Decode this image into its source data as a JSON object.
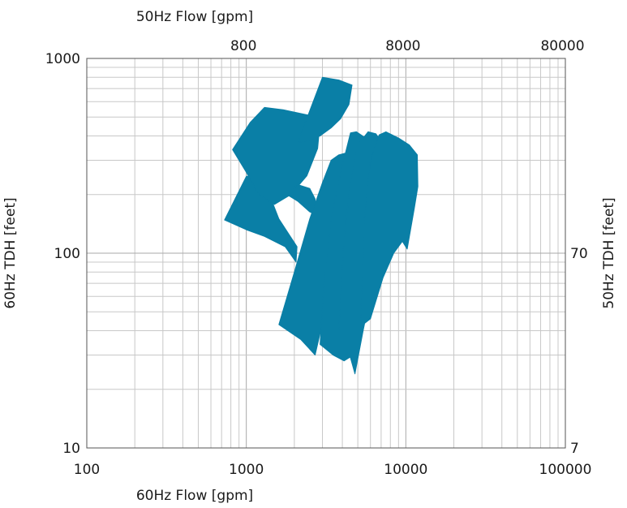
{
  "chart_data": {
    "type": "area",
    "xscale": "log",
    "yscale": "log",
    "xlim": [
      100,
      100000
    ],
    "ylim": [
      10,
      1000
    ],
    "grid": true,
    "xlabel": "60Hz Flow [gpm]",
    "ylabel": "60Hz TDH [feet]",
    "x2label": "50Hz Flow [gpm]",
    "y2label": "50Hz TDH [feet]",
    "x_ticks": [
      "100",
      "1000",
      "10000",
      "100000"
    ],
    "y_ticks": [
      "10",
      "100",
      "1000"
    ],
    "x2_ticks": [
      "800",
      "8000",
      "80000"
    ],
    "y2_ticks": [
      "7",
      "70"
    ],
    "x2_tick_positions_60hz": [
      960,
      9600,
      96000
    ],
    "y2_tick_positions_60hz": [
      10,
      100
    ],
    "fill_color": "#0a7fa6",
    "series": [
      {
        "points": [
          [
            730,
            148
          ],
          [
            1000,
            248
          ],
          [
            1260,
            248
          ],
          [
            1600,
            150
          ],
          [
            2080,
            108
          ],
          [
            2050,
            90
          ],
          [
            1750,
            108
          ],
          [
            1300,
            122
          ],
          [
            1000,
            132
          ]
        ]
      },
      {
        "points": [
          [
            820,
            340
          ],
          [
            1060,
            470
          ],
          [
            1300,
            560
          ],
          [
            1700,
            545
          ],
          [
            2500,
            510
          ],
          [
            2900,
            470
          ],
          [
            2800,
            345
          ],
          [
            2400,
            250
          ],
          [
            1900,
            200
          ],
          [
            1500,
            178
          ],
          [
            1200,
            200
          ],
          [
            1000,
            260
          ]
        ]
      },
      {
        "points": [
          [
            1800,
            200
          ],
          [
            2100,
            185
          ],
          [
            2500,
            163
          ],
          [
            2700,
            158
          ],
          [
            2700,
            190
          ],
          [
            2500,
            215
          ],
          [
            2100,
            225
          ],
          [
            1900,
            210
          ]
        ]
      },
      {
        "points": [
          [
            2100,
            370
          ],
          [
            3000,
            800
          ],
          [
            3800,
            775
          ],
          [
            4600,
            730
          ],
          [
            4400,
            580
          ],
          [
            3900,
            490
          ],
          [
            3400,
            440
          ],
          [
            2900,
            400
          ],
          [
            2500,
            380
          ]
        ]
      },
      {
        "points": [
          [
            1600,
            43
          ],
          [
            2200,
            36
          ],
          [
            2700,
            30
          ],
          [
            3200,
            55
          ],
          [
            3800,
            110
          ],
          [
            4300,
            200
          ],
          [
            4600,
            290
          ],
          [
            4400,
            330
          ],
          [
            3800,
            320
          ],
          [
            3400,
            300
          ],
          [
            3000,
            230
          ],
          [
            2500,
            150
          ],
          [
            2000,
            80
          ]
        ]
      },
      {
        "points": [
          [
            2900,
            34
          ],
          [
            3500,
            30
          ],
          [
            4100,
            28
          ],
          [
            4700,
            30
          ],
          [
            5200,
            60
          ],
          [
            5800,
            120
          ],
          [
            6500,
            220
          ],
          [
            7000,
            310
          ],
          [
            6500,
            360
          ],
          [
            5600,
            390
          ],
          [
            4900,
            420
          ],
          [
            4500,
            415
          ],
          [
            3900,
            260
          ],
          [
            3400,
            150
          ],
          [
            3100,
            80
          ]
        ]
      },
      {
        "points": [
          [
            3800,
            40
          ],
          [
            4500,
            29
          ],
          [
            4800,
            24
          ],
          [
            5400,
            40
          ],
          [
            6200,
            70
          ],
          [
            7000,
            130
          ],
          [
            8000,
            210
          ],
          [
            9000,
            300
          ],
          [
            8000,
            340
          ],
          [
            7000,
            375
          ],
          [
            6500,
            410
          ],
          [
            5800,
            420
          ],
          [
            5000,
            360
          ],
          [
            4500,
            230
          ],
          [
            4100,
            120
          ]
        ]
      },
      {
        "points": [
          [
            5200,
            42
          ],
          [
            6000,
            46
          ],
          [
            7200,
            75
          ],
          [
            8400,
            100
          ],
          [
            9500,
            115
          ],
          [
            10200,
            105
          ],
          [
            11300,
            170
          ],
          [
            11900,
            220
          ],
          [
            11800,
            320
          ],
          [
            10500,
            360
          ],
          [
            9000,
            390
          ],
          [
            7500,
            420
          ],
          [
            6800,
            405
          ],
          [
            6000,
            300
          ],
          [
            5500,
            150
          ]
        ]
      }
    ]
  }
}
